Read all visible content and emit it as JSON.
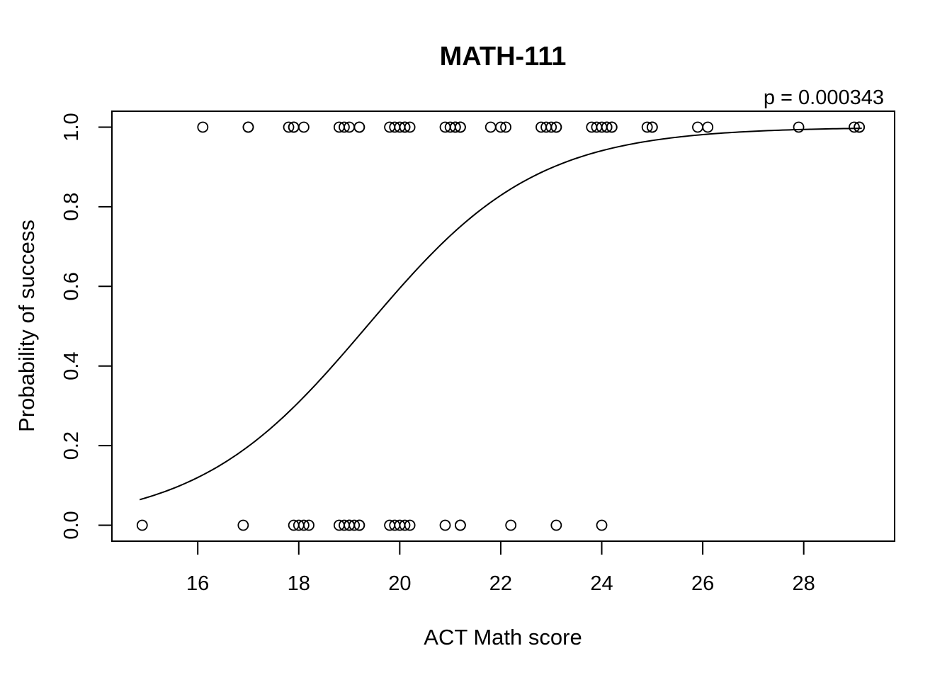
{
  "chart_data": {
    "type": "scatter",
    "title": "MATH-111",
    "xlabel": "ACT Math score",
    "ylabel": "Probability of success",
    "annotation": "p = 0.000343",
    "xlim": [
      14.3,
      29.8
    ],
    "ylim": [
      -0.04,
      1.04
    ],
    "x_ticks": [
      16,
      18,
      20,
      22,
      24,
      26,
      28
    ],
    "x_tick_labels": [
      "16",
      "18",
      "20",
      "22",
      "24",
      "26",
      "28"
    ],
    "y_ticks": [
      0.0,
      0.2,
      0.4,
      0.6,
      0.8,
      1.0
    ],
    "y_tick_labels": [
      "0.0",
      "0.2",
      "0.4",
      "0.6",
      "0.8",
      "1.0"
    ],
    "grid": false,
    "legend": "none",
    "series": [
      {
        "type": "scatter",
        "marker": "open-circle",
        "points": [
          [
            16.1,
            1
          ],
          [
            17.0,
            1
          ],
          [
            17.0,
            1
          ],
          [
            17.8,
            1
          ],
          [
            17.9,
            1
          ],
          [
            17.9,
            1
          ],
          [
            18.1,
            1
          ],
          [
            18.8,
            1
          ],
          [
            18.9,
            1
          ],
          [
            19.0,
            1
          ],
          [
            19.2,
            1
          ],
          [
            19.2,
            1
          ],
          [
            19.8,
            1
          ],
          [
            19.9,
            1
          ],
          [
            20.0,
            1
          ],
          [
            20.1,
            1
          ],
          [
            20.1,
            1
          ],
          [
            20.2,
            1
          ],
          [
            20.9,
            1
          ],
          [
            21.0,
            1
          ],
          [
            21.1,
            1
          ],
          [
            21.1,
            1
          ],
          [
            21.2,
            1
          ],
          [
            21.2,
            1
          ],
          [
            21.8,
            1
          ],
          [
            22.0,
            1
          ],
          [
            22.1,
            1
          ],
          [
            22.8,
            1
          ],
          [
            22.9,
            1
          ],
          [
            23.0,
            1
          ],
          [
            23.1,
            1
          ],
          [
            23.1,
            1
          ],
          [
            23.8,
            1
          ],
          [
            23.9,
            1
          ],
          [
            24.0,
            1
          ],
          [
            24.1,
            1
          ],
          [
            24.1,
            1
          ],
          [
            24.2,
            1
          ],
          [
            24.2,
            1
          ],
          [
            24.9,
            1
          ],
          [
            25.0,
            1
          ],
          [
            25.0,
            1
          ],
          [
            25.9,
            1
          ],
          [
            26.1,
            1
          ],
          [
            27.9,
            1
          ],
          [
            29.0,
            1
          ],
          [
            29.1,
            1
          ],
          [
            29.1,
            1
          ],
          [
            14.9,
            0
          ],
          [
            16.9,
            0
          ],
          [
            17.9,
            0
          ],
          [
            18.0,
            0
          ],
          [
            18.1,
            0
          ],
          [
            18.2,
            0
          ],
          [
            18.8,
            0
          ],
          [
            18.9,
            0
          ],
          [
            19.0,
            0
          ],
          [
            19.0,
            0
          ],
          [
            19.1,
            0
          ],
          [
            19.2,
            0
          ],
          [
            19.2,
            0
          ],
          [
            19.8,
            0
          ],
          [
            19.9,
            0
          ],
          [
            20.0,
            0
          ],
          [
            20.1,
            0
          ],
          [
            20.2,
            0
          ],
          [
            20.9,
            0
          ],
          [
            21.2,
            0
          ],
          [
            21.2,
            0
          ],
          [
            22.2,
            0
          ],
          [
            23.1,
            0
          ],
          [
            24.0,
            0
          ]
        ]
      },
      {
        "type": "line",
        "curve": "logistic",
        "x_range": [
          14.85,
          29.15
        ],
        "logistic_intercept": -11.51,
        "logistic_slope": 0.5948
      }
    ]
  }
}
